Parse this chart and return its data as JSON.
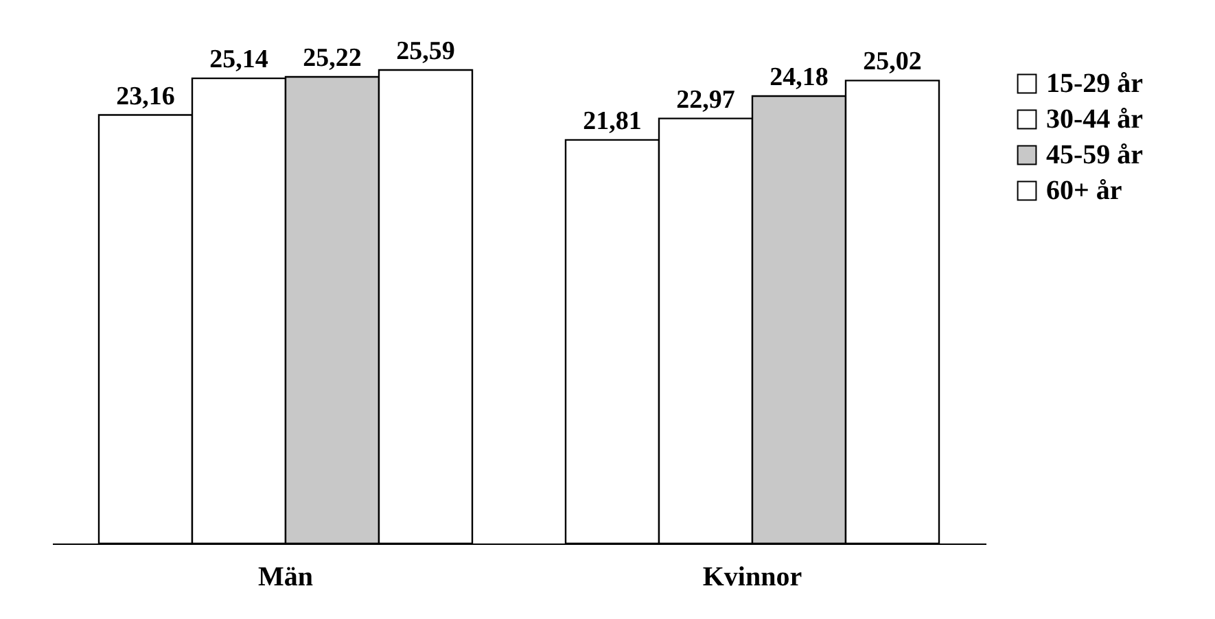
{
  "chart_data": {
    "type": "bar",
    "categories": [
      "Män",
      "Kvinnor"
    ],
    "series": [
      {
        "name": "15-29 år",
        "color": "#ffffff",
        "values": [
          23.16,
          21.81
        ],
        "value_labels": [
          "23,16",
          "21,81"
        ]
      },
      {
        "name": "30-44 år",
        "color": "#ffffff",
        "values": [
          25.14,
          22.97
        ],
        "value_labels": [
          "25,14",
          "22,97"
        ]
      },
      {
        "name": "45-59 år",
        "color": "#c8c8c8",
        "values": [
          25.22,
          24.18
        ],
        "value_labels": [
          "25,22",
          "24,18"
        ]
      },
      {
        "name": "60+ år",
        "color": "#ffffff",
        "values": [
          25.59,
          25.02
        ],
        "value_labels": [
          "25,59",
          "25,02"
        ]
      }
    ],
    "tick_labels": "x",
    "legend": "right"
  }
}
